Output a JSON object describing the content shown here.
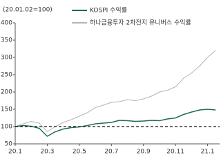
{
  "chart_data": {
    "type": "line",
    "ylabel": "(20.01.02=100)",
    "categories": [
      "20.1",
      null,
      null,
      null,
      "20.3",
      null,
      null,
      null,
      "20.5",
      null,
      null,
      null,
      "20.7",
      null,
      null,
      null,
      "20.9",
      null,
      null,
      null,
      "20.11",
      null,
      null,
      null,
      "21.1",
      null
    ],
    "series": [
      {
        "name": "KOSPI 수익률",
        "color": "#1e6b52",
        "values": [
          100,
          103,
          101,
          95,
          72,
          85,
          93,
          97,
          99,
          103,
          108,
          110,
          112,
          118,
          117,
          115,
          116,
          118,
          117,
          122,
          125,
          135,
          142,
          148,
          150,
          148
        ]
      },
      {
        "name": "하나금융투자 2차전지 유니버스 수익률",
        "color": "#b4b4b4",
        "values": [
          100,
          108,
          115,
          110,
          85,
          100,
          112,
          120,
          130,
          140,
          155,
          162,
          170,
          172,
          178,
          175,
          180,
          188,
          200,
          205,
          215,
          240,
          255,
          275,
          300,
          320
        ]
      }
    ],
    "ylim": [
      50,
      400
    ],
    "yticks": [
      50,
      100,
      150,
      200,
      250,
      300,
      350,
      400
    ],
    "reference_line": 100
  }
}
